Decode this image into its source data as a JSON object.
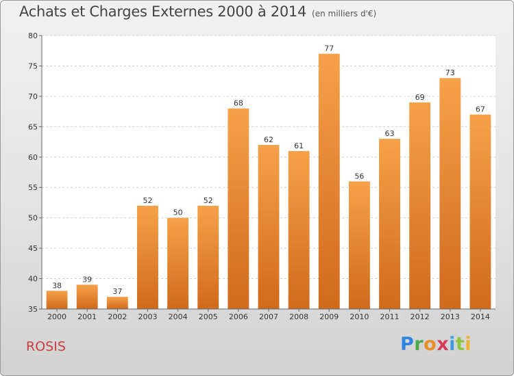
{
  "chart_data": {
    "type": "bar",
    "title": "Achats et Charges Externes 2000 à 2014",
    "subtitle": "(en milliers d'€)",
    "xlabel": "",
    "ylabel": "",
    "categories": [
      "2000",
      "2001",
      "2002",
      "2003",
      "2004",
      "2005",
      "2006",
      "2007",
      "2008",
      "2009",
      "2010",
      "2011",
      "2012",
      "2013",
      "2014"
    ],
    "values": [
      38,
      39,
      37,
      52,
      50,
      52,
      68,
      62,
      61,
      77,
      56,
      63,
      69,
      73,
      67
    ],
    "ylim": [
      35,
      80
    ],
    "yticks": [
      35,
      40,
      45,
      50,
      55,
      60,
      65,
      70,
      75,
      80
    ],
    "grid": true,
    "bar_color": "#f29a3f"
  },
  "commune": "ROSIS",
  "logo": {
    "letters": [
      "P",
      "r",
      "o",
      "x",
      "i",
      "t",
      "i"
    ]
  }
}
